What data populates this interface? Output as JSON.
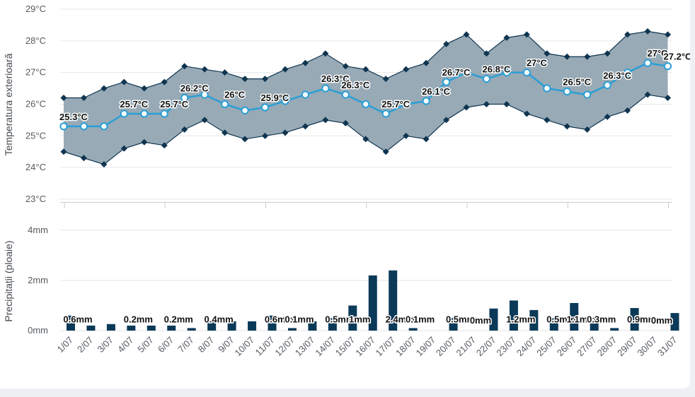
{
  "chart_data": [
    {
      "type": "line",
      "ylabel": "Temperatura exterioară",
      "y_ticks": [
        "23°C",
        "24°C",
        "25°C",
        "26°C",
        "27°C",
        "28°C",
        "29°C"
      ],
      "ylim": [
        23,
        29
      ],
      "unit": "°C",
      "categories": [
        "1/07",
        "2/07",
        "3/07",
        "4/07",
        "5/07",
        "6/07",
        "7/07",
        "8/07",
        "9/07",
        "10/07",
        "11/07",
        "12/07",
        "13/07",
        "14/07",
        "15/07",
        "16/07",
        "17/07",
        "18/07",
        "19/07",
        "20/07",
        "21/07",
        "22/07",
        "23/07",
        "24/07",
        "25/07",
        "26/07",
        "27/07",
        "28/07",
        "29/07",
        "30/07",
        "31/07"
      ],
      "series": [
        {
          "values": [
            26.2,
            26.2,
            26.5,
            26.7,
            26.5,
            26.7,
            27.2,
            27.1,
            27.0,
            26.8,
            26.8,
            27.1,
            27.3,
            27.6,
            27.2,
            27.1,
            26.8,
            27.1,
            27.3,
            27.9,
            28.2,
            27.6,
            28.1,
            28.2,
            27.6,
            27.5,
            27.5,
            27.6,
            28.2,
            28.3,
            28.2
          ]
        },
        {
          "values": [
            25.3,
            25.3,
            25.3,
            25.7,
            25.7,
            25.7,
            26.2,
            26.3,
            26.0,
            25.8,
            25.9,
            26.1,
            26.3,
            26.5,
            26.3,
            26.0,
            25.7,
            26.0,
            26.1,
            26.7,
            27.0,
            26.8,
            27.0,
            27.0,
            26.5,
            26.4,
            26.3,
            26.6,
            27.0,
            27.3,
            27.2
          ]
        },
        {
          "values": [
            24.5,
            24.3,
            24.1,
            24.6,
            24.8,
            24.7,
            25.2,
            25.5,
            25.1,
            24.9,
            25.0,
            25.1,
            25.3,
            25.5,
            25.4,
            24.9,
            24.5,
            25.0,
            24.9,
            25.5,
            25.9,
            26.0,
            26.0,
            25.7,
            25.5,
            25.3,
            25.2,
            25.6,
            25.8,
            26.3,
            26.2
          ]
        }
      ],
      "data_labels": [
        "25.3°C",
        "",
        "",
        "25.7°C",
        "",
        "25.7°C",
        "26.2°C",
        "",
        "26°C",
        "",
        "25.9°C",
        "",
        "",
        "26.3°C",
        "26.3°C",
        "",
        "25.7°C",
        "",
        "26.1°C",
        "26.7°C",
        "",
        "26.8°C",
        "",
        "27°C",
        "",
        "26.5°C",
        "",
        "26.3°C",
        "",
        "27°C",
        "27.2°C"
      ],
      "colors": {
        "band": "#97aab6",
        "band_edge": "#0f3550",
        "line": "#2a9fd6"
      },
      "grid": true
    },
    {
      "type": "bar",
      "ylabel": "Precipitații (ploaie)",
      "y_ticks": [
        "0mm",
        "2mm",
        "4mm"
      ],
      "ylim": [
        0,
        4
      ],
      "unit": "mm",
      "categories": [
        "1/07",
        "2/07",
        "3/07",
        "4/07",
        "5/07",
        "6/07",
        "7/07",
        "8/07",
        "9/07",
        "10/07",
        "11/07",
        "12/07",
        "13/07",
        "14/07",
        "15/07",
        "16/07",
        "17/07",
        "18/07",
        "19/07",
        "20/07",
        "21/07",
        "22/07",
        "23/07",
        "24/07",
        "25/07",
        "26/07",
        "27/07",
        "28/07",
        "29/07",
        "30/07",
        "31/07"
      ],
      "values": [
        0.6,
        0.2,
        0.26,
        0.2,
        0.2,
        0.2,
        0.1,
        0.4,
        0.37,
        0.37,
        0.6,
        0.1,
        0.37,
        0.5,
        1.0,
        2.2,
        2.4,
        0.1,
        0,
        0.5,
        0,
        0.88,
        1.2,
        0.82,
        0.5,
        1.1,
        0.3,
        0.1,
        0.9,
        0,
        0.7
      ],
      "data_labels": [
        "0.6mm",
        "",
        "",
        "0.2mm",
        "",
        "0.2mm",
        "",
        "0.4mm",
        "",
        "",
        "0.6mm",
        "0.1mm",
        "",
        "0.5mm",
        "1mm",
        "",
        "2.4mm",
        "0.1mm",
        "",
        "0.5mm",
        "0mm",
        "",
        "1.2mm",
        "",
        "0.5mm",
        "1.1mm",
        "0.3mm",
        "",
        "0.9mm",
        "0mm",
        ""
      ],
      "colors": {
        "bar": "#0b3a58"
      },
      "grid": true
    }
  ]
}
